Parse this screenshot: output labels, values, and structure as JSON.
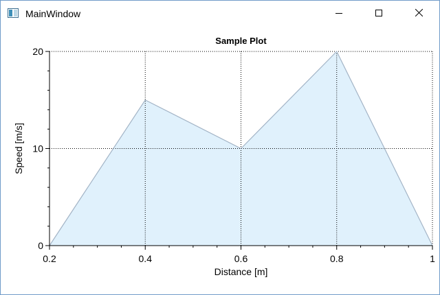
{
  "window": {
    "title": "MainWindow"
  },
  "caption_buttons": {
    "minimize_icon": "minimize-icon",
    "maximize_icon": "maximize-icon",
    "close_icon": "close-icon"
  },
  "colors": {
    "fill": "#e0f1fc",
    "line": "#a3b4c6",
    "grid": "#000000",
    "window_border": "#6f9bc9"
  },
  "chart_data": {
    "type": "area",
    "title": "Sample Plot",
    "xlabel": "Distance [m]",
    "ylabel": "Speed [m/s]",
    "xlim": [
      0.2,
      1.0
    ],
    "ylim": [
      0,
      20
    ],
    "x_ticks": [
      "0.2",
      "0.4",
      "0.6",
      "0.8",
      "1"
    ],
    "y_ticks": [
      "0",
      "10",
      "20"
    ],
    "grid": "dotted at major ticks",
    "series": [
      {
        "x": [
          0.2,
          0.4,
          0.6,
          0.8,
          1.0
        ],
        "y": [
          0,
          15,
          10,
          20,
          0
        ]
      }
    ]
  }
}
